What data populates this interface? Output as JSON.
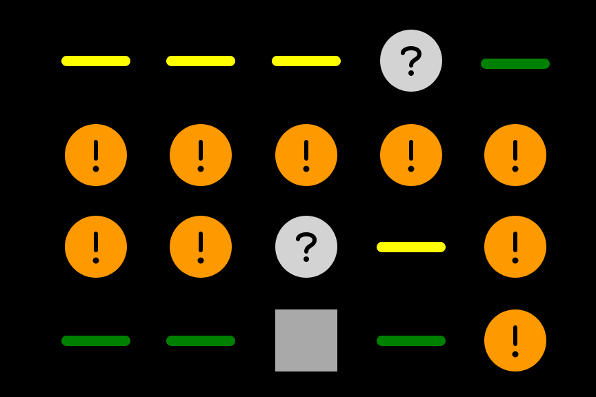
{
  "colors": {
    "background": "#000000",
    "yellow": "#ffff00",
    "green": "#008000",
    "orange": "#ff9900",
    "grey_light": "#d3d3d3",
    "grey_square": "#a9a9a9",
    "glyph": "#000000"
  },
  "grid": {
    "rows": 4,
    "cols": 5,
    "tiles": [
      [
        "yellow-bar",
        "yellow-bar",
        "yellow-bar",
        "question-circle",
        "green-bar"
      ],
      [
        "warning-circle",
        "warning-circle",
        "warning-circle",
        "warning-circle",
        "warning-circle"
      ],
      [
        "warning-circle",
        "warning-circle",
        "question-circle",
        "yellow-bar",
        "warning-circle"
      ],
      [
        "green-bar",
        "green-bar",
        "grey-square",
        "green-bar",
        "warning-circle"
      ]
    ]
  }
}
